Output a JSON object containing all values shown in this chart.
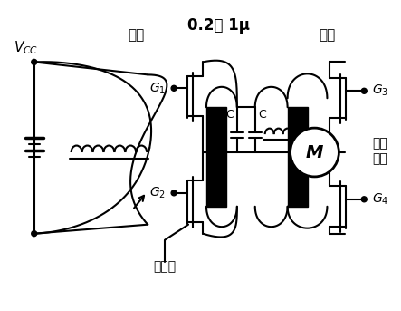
{
  "bg_color": "#ffffff",
  "fg_color": "#000000",
  "label_0_2_1mu": "0.2～ 1μ",
  "label_suoduan": "缩短",
  "label_vcc": "$V_{CC}$",
  "label_g1": "$G_1$",
  "label_g2": "$G_2$",
  "label_g3": "$G_3$",
  "label_g4": "$G_4$",
  "label_xzx": "旋转线",
  "label_zhijie": "直接",
  "label_fujia": "附加",
  "label_c": "C",
  "label_m": "M"
}
